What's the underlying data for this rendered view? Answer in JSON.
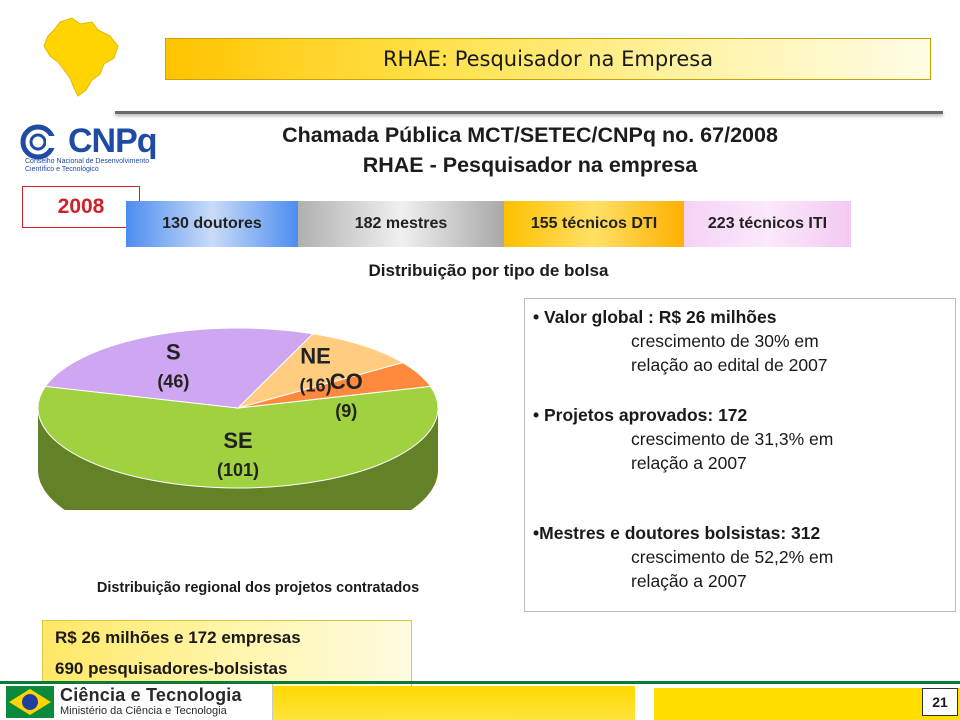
{
  "header": {
    "banner_title": "RHAE: Pesquisador na Empresa",
    "heading_line1": "Chamada Pública MCT/SETEC/CNPq no. 67/2008",
    "heading_line2": "RHAE  - Pesquisador na empresa",
    "year": "2008"
  },
  "logo": {
    "word": "CNPq",
    "subtitle": "Conselho Nacional de Desenvolvimento Científico e Tecnológico"
  },
  "bolsas": {
    "segments": [
      {
        "label": "130 doutores",
        "count": 130
      },
      {
        "label": "182 mestres",
        "count": 182
      },
      {
        "label": "155 técnicos DTI",
        "count": 155
      },
      {
        "label": "223 técnicos ITI",
        "count": 223
      }
    ],
    "caption": "Distribuição por tipo de bolsa"
  },
  "chart_data": {
    "type": "pie",
    "caption": "Distribuição regional dos projetos contratados",
    "slices": [
      {
        "region": "SE",
        "label": "(101)",
        "value": 101,
        "color": "#9fd140"
      },
      {
        "region": "S",
        "label": "(46)",
        "value": 46,
        "color": "#cfa6f2"
      },
      {
        "region": "NE",
        "label": "(16)",
        "value": 16,
        "color": "#ffcc80"
      },
      {
        "region": "CO",
        "label": "(9)",
        "value": 9,
        "color": "#ff8a3d"
      }
    ]
  },
  "info": {
    "items": [
      {
        "head": "Valor global : R$ 26 milhões",
        "sub1": "crescimento de 30% em",
        "sub2": "relação ao edital de 2007"
      },
      {
        "head": "Projetos aprovados: 172",
        "sub1": "crescimento de 31,3% em",
        "sub2": "relação a 2007"
      },
      {
        "head": "Mestres e doutores bolsistas: 312",
        "sub1": "crescimento de 52,2% em",
        "sub2": "relação a 2007"
      }
    ]
  },
  "summary": {
    "line1": "R$ 26 milhões e 172 empresas",
    "line2": "690 pesquisadores-bolsistas"
  },
  "footer": {
    "title": "Ciência e Tecnologia",
    "ministry": "Ministério da Ciência e Tecnologia",
    "page_number": "21"
  }
}
